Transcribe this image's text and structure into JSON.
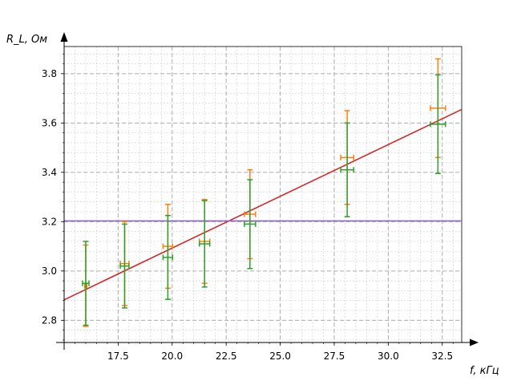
{
  "chart_data": {
    "type": "scatter",
    "title": "",
    "xlabel": "f, кГц",
    "ylabel": "R_L, Ом",
    "xlim": [
      15.0,
      33.4
    ],
    "ylim": [
      2.71,
      3.91
    ],
    "xticks": [
      17.5,
      20.0,
      22.5,
      25.0,
      27.5,
      30.0,
      32.5
    ],
    "yticks": [
      2.8,
      3.0,
      3.2,
      3.4,
      3.6,
      3.8
    ],
    "grid": true,
    "series": [
      {
        "color": "#ff7f0e",
        "x": [
          16.0,
          17.8,
          19.8,
          21.5,
          23.6,
          28.1,
          32.3
        ],
        "y": [
          2.94,
          3.03,
          3.1,
          3.12,
          3.23,
          3.46,
          3.66
        ],
        "yerr": [
          0.165,
          0.17,
          0.17,
          0.17,
          0.18,
          0.19,
          0.2
        ],
        "xerr": [
          0.05,
          0.2,
          0.22,
          0.24,
          0.26,
          0.3,
          0.35
        ]
      },
      {
        "color": "#2ca02c",
        "x": [
          16.0,
          17.8,
          19.8,
          21.5,
          23.6,
          28.1,
          32.3
        ],
        "y": [
          2.95,
          3.02,
          3.055,
          3.11,
          3.19,
          3.41,
          3.595
        ],
        "yerr": [
          0.17,
          0.17,
          0.17,
          0.175,
          0.18,
          0.19,
          0.2
        ],
        "xerr": [
          0.15,
          0.2,
          0.22,
          0.24,
          0.26,
          0.3,
          0.35
        ]
      }
    ],
    "lines": [
      {
        "color": "#d62728",
        "x": [
          15.0,
          33.4
        ],
        "y": [
          2.883,
          3.655
        ]
      },
      {
        "color": "#9467bd",
        "x": [
          15.0,
          33.4
        ],
        "y": [
          3.203,
          3.203
        ]
      }
    ]
  }
}
